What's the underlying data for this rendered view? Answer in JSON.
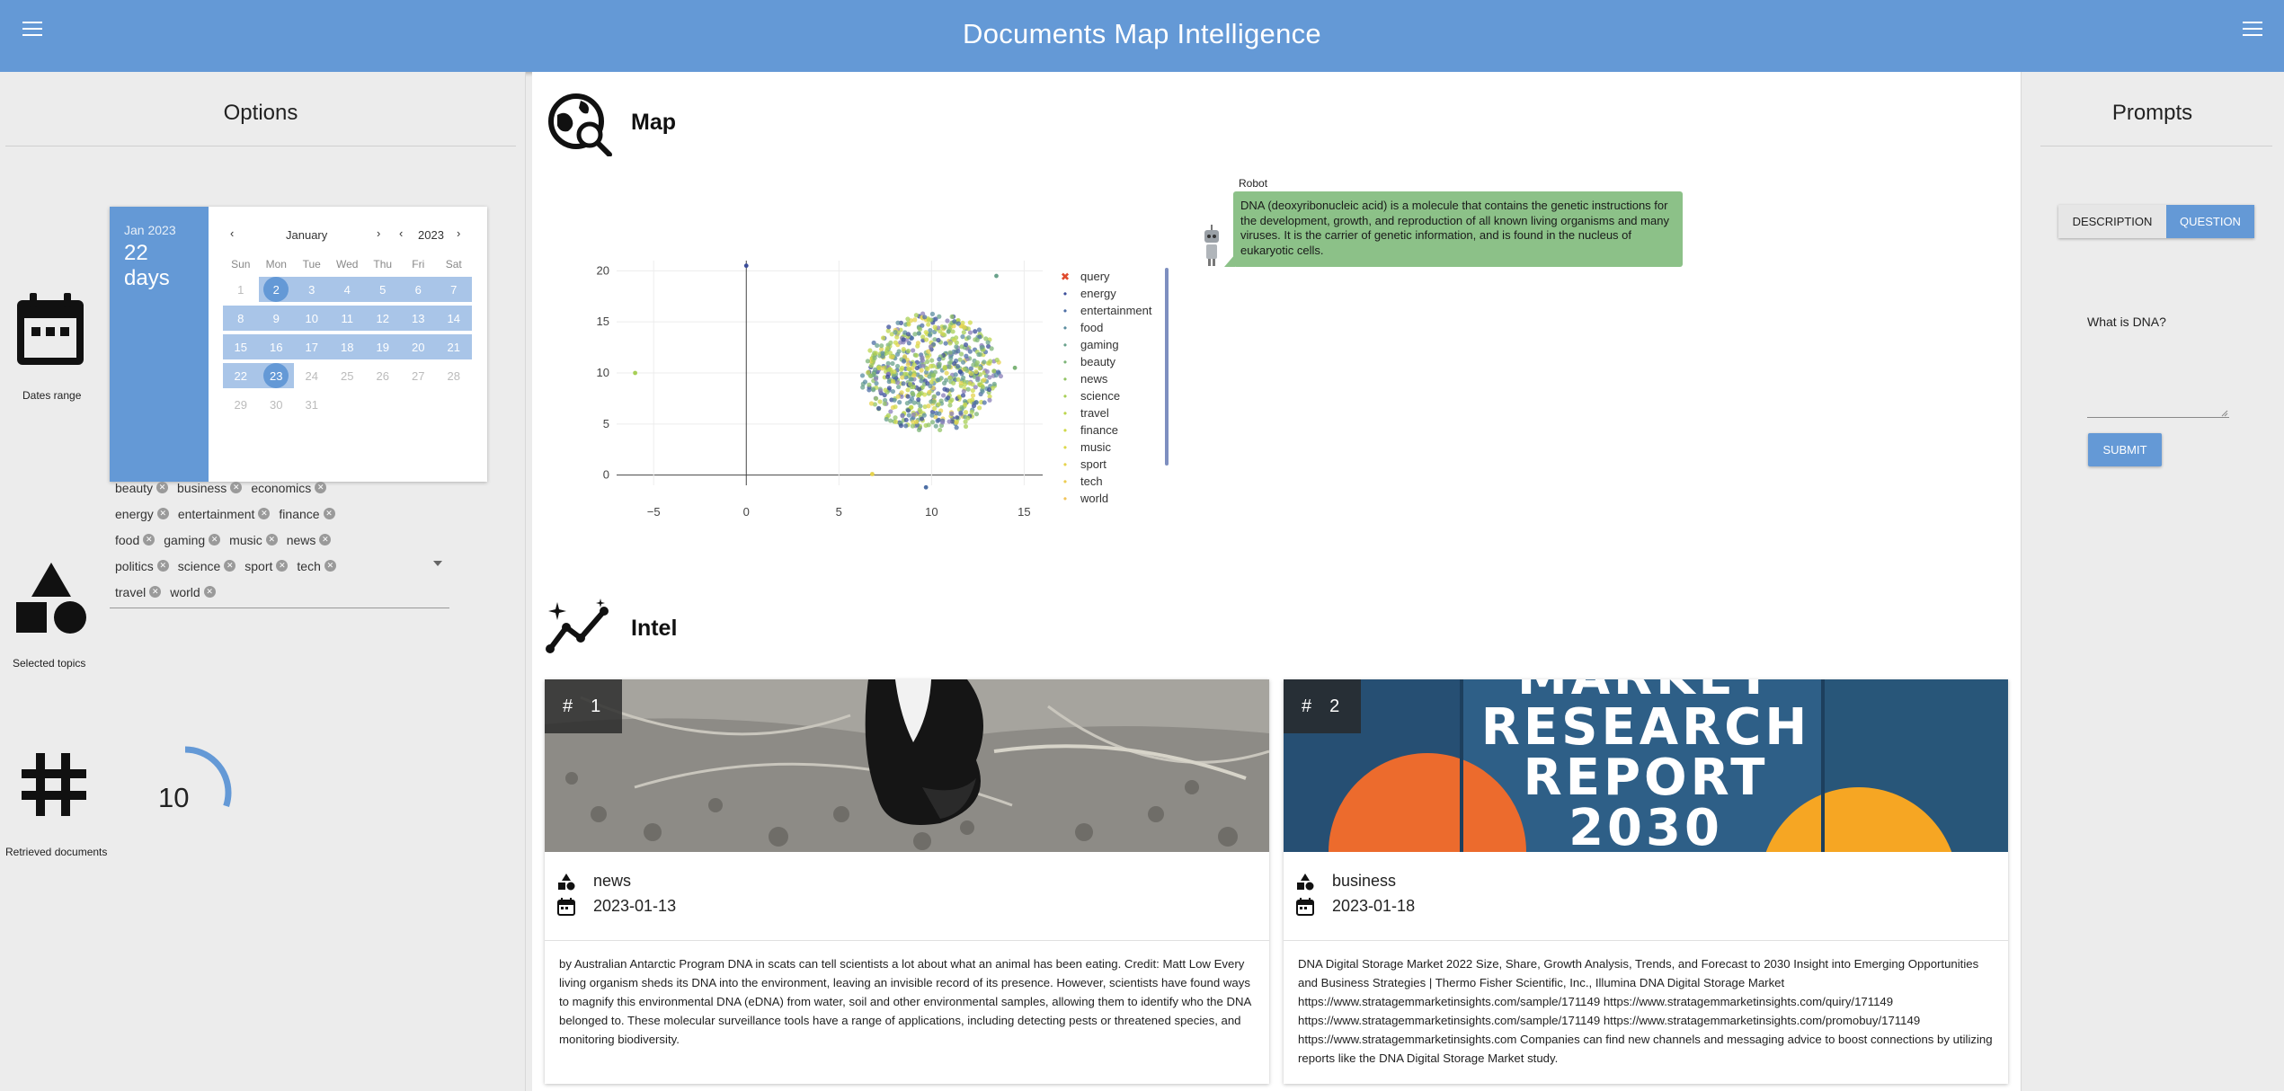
{
  "app": {
    "title": "Documents Map Intelligence"
  },
  "options": {
    "title": "Options",
    "dates_label": "Dates range",
    "calendar": {
      "header_year": "Jan 2023",
      "header_days_num": "22",
      "header_days_word": "days",
      "month": "January",
      "year": "2023",
      "weekdays": [
        "Sun",
        "Mon",
        "Tue",
        "Wed",
        "Thu",
        "Fri",
        "Sat"
      ],
      "weeks": [
        [
          "1",
          "2",
          "3",
          "4",
          "5",
          "6",
          "7"
        ],
        [
          "8",
          "9",
          "10",
          "11",
          "12",
          "13",
          "14"
        ],
        [
          "15",
          "16",
          "17",
          "18",
          "19",
          "20",
          "21"
        ],
        [
          "22",
          "23",
          "24",
          "25",
          "26",
          "27",
          "28"
        ],
        [
          "29",
          "30",
          "31",
          "",
          "",
          "",
          ""
        ]
      ],
      "range_start": "2",
      "range_end": "23"
    },
    "topics_label": "Selected topics",
    "topics": [
      [
        "beauty",
        "business",
        "economics"
      ],
      [
        "energy",
        "entertainment",
        "finance"
      ],
      [
        "food",
        "gaming",
        "music",
        "news"
      ],
      [
        "politics",
        "science",
        "sport",
        "tech"
      ],
      [
        "travel",
        "world"
      ]
    ],
    "retrieved_label": "Retrieved documents",
    "retrieved_count": "10",
    "retrieved_fraction": 0.3
  },
  "map": {
    "title": "Map",
    "robot_name": "Robot",
    "robot_message": "DNA (deoxyribonucleic acid) is a molecule that contains the genetic instructions for the development, growth, and reproduction of all known living organisms and many viruses. It is the carrier of genetic information, and is found in the nucleus of eukaryotic cells.",
    "legend": [
      "query",
      "energy",
      "entertainment",
      "food",
      "gaming",
      "beauty",
      "news",
      "science",
      "travel",
      "finance",
      "music",
      "sport",
      "tech",
      "world"
    ]
  },
  "chart_data": {
    "type": "scatter",
    "xlim": [
      -7,
      16
    ],
    "ylim": [
      -1,
      21
    ],
    "xticks": [
      "−5",
      "0",
      "5",
      "10",
      "15"
    ],
    "yticks": [
      "0",
      "5",
      "10",
      "15",
      "20"
    ],
    "series_names": [
      "query",
      "energy",
      "entertainment",
      "food",
      "gaming",
      "beauty",
      "news",
      "science",
      "travel",
      "finance",
      "music",
      "sport",
      "tech",
      "world"
    ],
    "cluster_center": [
      10,
      10
    ],
    "outliers": [
      [
        0,
        20.5
      ],
      [
        13.5,
        19.5
      ],
      [
        -6,
        10
      ],
      [
        6.8,
        0.1
      ],
      [
        9.7,
        -1.2
      ],
      [
        14.5,
        10.5
      ]
    ]
  },
  "intel": {
    "title": "Intel",
    "cards": [
      {
        "number": "1",
        "topic": "news",
        "date": "2023-01-13",
        "text": "by Australian Antarctic Program DNA in scats can tell scientists a lot about what an animal has been eating. Credit: Matt Low Every living organism sheds its DNA into the environment, leaving an invisible record of its presence. However, scientists have found ways to magnify this environmental DNA (eDNA) from water, soil and other environmental samples, allowing them to identify who the DNA belonged to. These molecular surveillance tools have a range of applications, including detecting pests or threatened species, and monitoring biodiversity."
      },
      {
        "number": "2",
        "topic": "business",
        "date": "2023-01-18",
        "text": "DNA Digital Storage Market 2022 Size, Share, Growth Analysis, Trends, and Forecast to 2030 Insight into Emerging Opportunities and Business Strategies | Thermo Fisher Scientific, Inc., Illumina DNA Digital Storage Market https://www.stratagemmarketinsights.com/sample/171149 https://www.stratagemmarketinsights.com/quiry/171149 https://www.stratagemmarketinsights.com/sample/171149 https://www.stratagemmarketinsights.com/promobuy/171149 https://www.stratagemmarketinsights.com Companies can find new channels and messaging advice to boost connections by utilizing reports like the DNA Digital Storage Market study.",
        "image_text": [
          "MARKET",
          "RESEARCH",
          "REPORT",
          "2030"
        ]
      }
    ]
  },
  "prompts": {
    "title": "Prompts",
    "tab_description": "DESCRIPTION",
    "tab_question": "QUESTION",
    "question_value": "What is DNA?",
    "submit_label": "SUBMIT"
  },
  "colors": {
    "appbar": "#6499d6",
    "bubble": "#8cc188",
    "accent": "#6499d6"
  },
  "icons": [
    "menu-icon",
    "calendar-icon",
    "shapes-icon",
    "hash-icon",
    "map-search-icon",
    "intel-chart-icon",
    "robot-icon"
  ]
}
